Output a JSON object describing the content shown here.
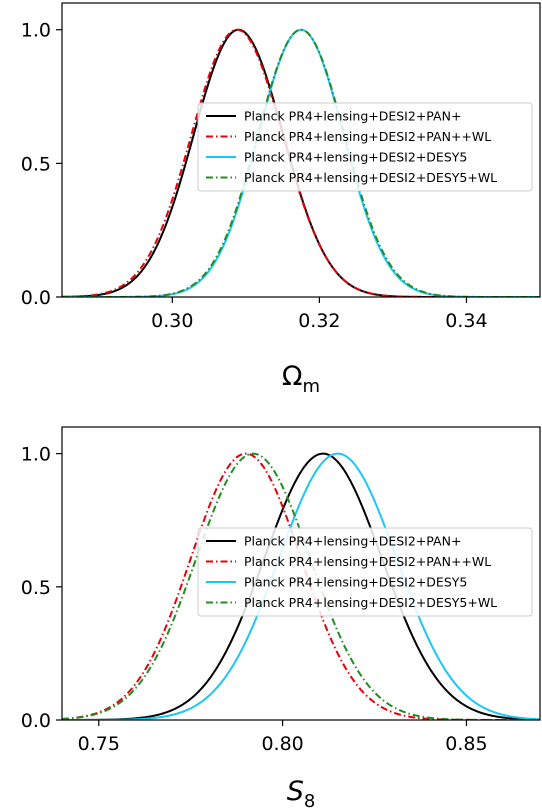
{
  "chart_data": [
    {
      "type": "line",
      "xlabel": "Ωm",
      "ylabel": "",
      "xlim": [
        0.285,
        0.35
      ],
      "ylim": [
        0,
        1.1
      ],
      "xticks": [
        0.3,
        0.32,
        0.34
      ],
      "xtick_labels": [
        "0.30",
        "0.32",
        "0.34"
      ],
      "yticks": [
        0.0,
        0.5,
        1.0
      ],
      "ytick_labels": [
        "0.0",
        "0.5",
        "1.0"
      ],
      "legend_position": "center-right",
      "grid": false,
      "series": [
        {
          "name": "Planck PR4+lensing+DESI2+PAN+",
          "color": "#000000",
          "dash": "solid",
          "mean": 0.309,
          "sigma": 0.0061
        },
        {
          "name": "Planck PR4+lensing+DESI2+PAN++WL",
          "color": "#e8000b",
          "dash": "dashdot",
          "mean": 0.3088,
          "sigma": 0.0062
        },
        {
          "name": "Planck PR4+lensing+DESI2+DESY5",
          "color": "#1ac8f5",
          "dash": "solid",
          "mean": 0.3175,
          "sigma": 0.0058
        },
        {
          "name": "Planck PR4+lensing+DESI2+DESY5+WL",
          "color": "#238b23",
          "dash": "dashdot",
          "mean": 0.3175,
          "sigma": 0.0059
        }
      ]
    },
    {
      "type": "line",
      "xlabel": "S8",
      "ylabel": "",
      "xlim": [
        0.74,
        0.87
      ],
      "ylim": [
        0,
        1.1
      ],
      "xticks": [
        0.75,
        0.8,
        0.85
      ],
      "xtick_labels": [
        "0.75",
        "0.80",
        "0.85"
      ],
      "yticks": [
        0.0,
        0.5,
        1.0
      ],
      "ytick_labels": [
        "0.0",
        "0.5",
        "1.0"
      ],
      "legend_position": "center-right",
      "grid": false,
      "series": [
        {
          "name": "Planck PR4+lensing+DESI2+PAN+",
          "color": "#000000",
          "dash": "solid",
          "mean": 0.811,
          "sigma": 0.016
        },
        {
          "name": "Planck PR4+lensing+DESI2+PAN++WL",
          "color": "#e8000b",
          "dash": "dashdot",
          "mean": 0.79,
          "sigma": 0.015
        },
        {
          "name": "Planck PR4+lensing+DESI2+DESY5",
          "color": "#1ac8f5",
          "dash": "solid",
          "mean": 0.815,
          "sigma": 0.016
        },
        {
          "name": "Planck PR4+lensing+DESI2+DESY5+WL",
          "color": "#238b23",
          "dash": "dashdot",
          "mean": 0.792,
          "sigma": 0.0155
        }
      ]
    }
  ]
}
